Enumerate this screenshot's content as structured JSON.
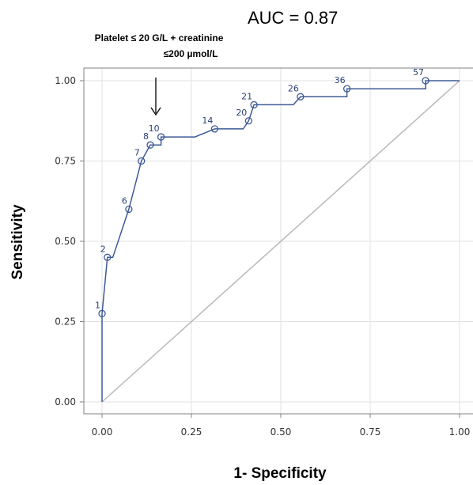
{
  "auc_text": "AUC = 0.87",
  "annotation": {
    "line1": "Platelet ≤ 20 G/L + creatinine",
    "line2": "≤200 µmol/L"
  },
  "colors": {
    "roc_line": "#3d5a96",
    "diagonal": "#b8b8b8",
    "grid": "#e2e2e2",
    "frame": "#808080"
  },
  "chart_data": {
    "type": "line",
    "title": "",
    "xlabel": "1- Specificity",
    "ylabel": "Sensitivity",
    "xlim": [
      0,
      1
    ],
    "ylim": [
      0,
      1
    ],
    "grid": true,
    "legend": "none",
    "x_ticks": [
      "0.00",
      "0.25",
      "0.50",
      "0.75",
      "1.00"
    ],
    "y_ticks": [
      "0.00",
      "0.25",
      "0.50",
      "0.75",
      "1.00"
    ],
    "series": [
      {
        "points": [
          {
            "x": 0.0,
            "y": 0.0
          },
          {
            "x": 0.0,
            "y": 0.275
          },
          {
            "x": 0.015,
            "y": 0.45
          },
          {
            "x": 0.03,
            "y": 0.45
          },
          {
            "x": 0.075,
            "y": 0.6
          },
          {
            "x": 0.11,
            "y": 0.75
          },
          {
            "x": 0.135,
            "y": 0.8
          },
          {
            "x": 0.165,
            "y": 0.8
          },
          {
            "x": 0.165,
            "y": 0.825
          },
          {
            "x": 0.26,
            "y": 0.825
          },
          {
            "x": 0.315,
            "y": 0.85
          },
          {
            "x": 0.395,
            "y": 0.85
          },
          {
            "x": 0.41,
            "y": 0.875
          },
          {
            "x": 0.425,
            "y": 0.925
          },
          {
            "x": 0.535,
            "y": 0.925
          },
          {
            "x": 0.555,
            "y": 0.95
          },
          {
            "x": 0.685,
            "y": 0.95
          },
          {
            "x": 0.685,
            "y": 0.975
          },
          {
            "x": 0.905,
            "y": 0.975
          },
          {
            "x": 0.905,
            "y": 1.0
          },
          {
            "x": 1.0,
            "y": 1.0
          }
        ],
        "markers": [
          {
            "x": 0.0,
            "y": 0.275,
            "label": "1"
          },
          {
            "x": 0.015,
            "y": 0.45,
            "label": "2"
          },
          {
            "x": 0.075,
            "y": 0.6,
            "label": "6"
          },
          {
            "x": 0.11,
            "y": 0.75,
            "label": "7"
          },
          {
            "x": 0.135,
            "y": 0.8,
            "label": "8"
          },
          {
            "x": 0.165,
            "y": 0.825,
            "label": "10"
          },
          {
            "x": 0.315,
            "y": 0.85,
            "label": "14"
          },
          {
            "x": 0.41,
            "y": 0.875,
            "label": "20"
          },
          {
            "x": 0.425,
            "y": 0.925,
            "label": "21"
          },
          {
            "x": 0.555,
            "y": 0.95,
            "label": "26"
          },
          {
            "x": 0.685,
            "y": 0.975,
            "label": "36"
          },
          {
            "x": 0.905,
            "y": 1.0,
            "label": "57"
          }
        ]
      }
    ],
    "reference_line": [
      [
        0,
        0
      ],
      [
        1,
        1
      ]
    ]
  }
}
